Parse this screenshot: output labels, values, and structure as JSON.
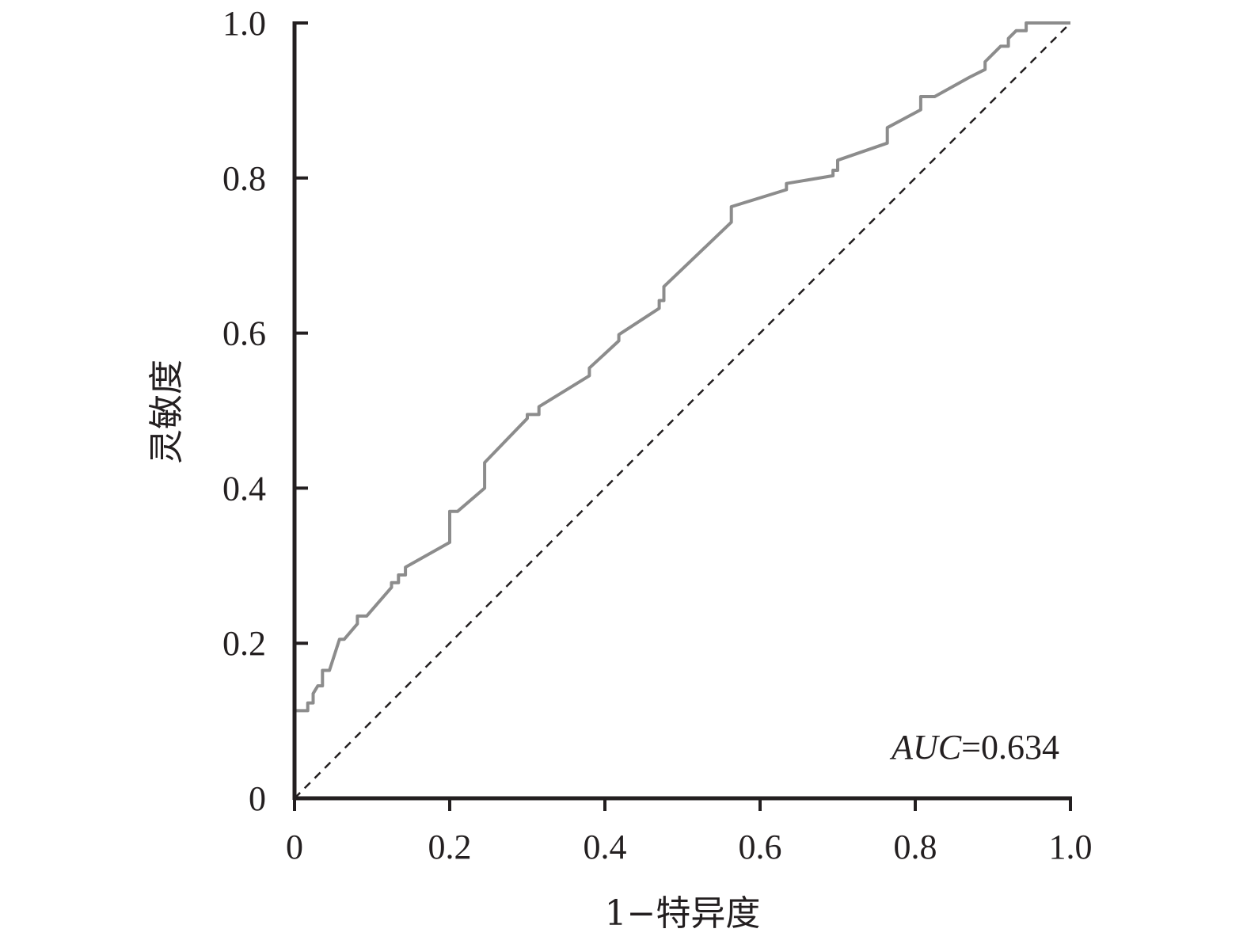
{
  "chart_data": {
    "type": "line",
    "xlabel": "1−特异度",
    "ylabel": "灵敏度",
    "xlim": [
      0,
      1.0
    ],
    "ylim": [
      0,
      1.0
    ],
    "x_ticks": [
      "0",
      "0.2",
      "0.4",
      "0.6",
      "0.8",
      "1.0"
    ],
    "y_ticks": [
      "0",
      "0.2",
      "0.4",
      "0.6",
      "0.8",
      "1.0"
    ],
    "x_tick_values": [
      0,
      0.2,
      0.4,
      0.6,
      0.8,
      1.0
    ],
    "y_tick_values": [
      0,
      0.2,
      0.4,
      0.6,
      0.8,
      1.0
    ],
    "grid": false,
    "annotation": {
      "label_italic": "AUC",
      "label_rest": "=0.634"
    },
    "colors": {
      "roc_curve": "#8c8c8c",
      "reference_line": "#231f20",
      "axes": "#231f20"
    },
    "series": [
      {
        "style": "solid",
        "x": [
          0,
          0,
          0.005,
          0.017,
          0.017,
          0.024,
          0.024,
          0.03,
          0.036,
          0.036,
          0.045,
          0.058,
          0.064,
          0.081,
          0.081,
          0.093,
          0.125,
          0.125,
          0.134,
          0.134,
          0.143,
          0.143,
          0.2,
          0.2,
          0.21,
          0.245,
          0.245,
          0.3,
          0.3,
          0.315,
          0.315,
          0.38,
          0.38,
          0.418,
          0.418,
          0.47,
          0.47,
          0.476,
          0.476,
          0.563,
          0.563,
          0.634,
          0.634,
          0.694,
          0.694,
          0.7,
          0.7,
          0.764,
          0.764,
          0.807,
          0.807,
          0.825,
          0.87,
          0.89,
          0.89,
          0.91,
          0.91,
          0.92,
          0.92,
          0.93,
          0.943,
          0.943,
          1.0
        ],
        "y": [
          0,
          0.113,
          0.113,
          0.113,
          0.123,
          0.123,
          0.135,
          0.145,
          0.145,
          0.165,
          0.165,
          0.205,
          0.205,
          0.225,
          0.235,
          0.235,
          0.272,
          0.278,
          0.278,
          0.288,
          0.288,
          0.298,
          0.33,
          0.37,
          0.37,
          0.4,
          0.433,
          0.49,
          0.495,
          0.495,
          0.505,
          0.545,
          0.555,
          0.59,
          0.598,
          0.632,
          0.642,
          0.642,
          0.66,
          0.743,
          0.763,
          0.785,
          0.793,
          0.803,
          0.81,
          0.81,
          0.823,
          0.845,
          0.865,
          0.888,
          0.905,
          0.905,
          0.93,
          0.94,
          0.95,
          0.97,
          0.97,
          0.97,
          0.98,
          0.99,
          0.99,
          1.0,
          1.0
        ]
      },
      {
        "style": "dashed",
        "x": [
          0,
          1.0
        ],
        "y": [
          0,
          1.0
        ]
      }
    ]
  }
}
